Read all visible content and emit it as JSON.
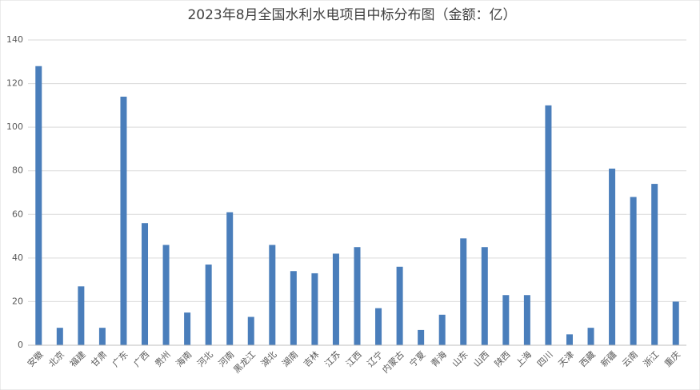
{
  "chart_data": {
    "type": "bar",
    "title": "2023年8月全国水利水电项目中标分布图（金额：亿）",
    "categories": [
      "安徽",
      "北京",
      "福建",
      "甘肃",
      "广东",
      "广西",
      "贵州",
      "海南",
      "河北",
      "河南",
      "黑龙江",
      "湖北",
      "湖南",
      "吉林",
      "江苏",
      "江西",
      "辽宁",
      "内蒙古",
      "宁夏",
      "青海",
      "山东",
      "山西",
      "陕西",
      "上海",
      "四川",
      "天津",
      "西藏",
      "新疆",
      "云南",
      "浙江",
      "重庆"
    ],
    "values": [
      128,
      8,
      27,
      8,
      114,
      56,
      46,
      15,
      37,
      61,
      13,
      46,
      34,
      33,
      42,
      45,
      17,
      36,
      7,
      14,
      49,
      45,
      23,
      23,
      110,
      5,
      8,
      81,
      68,
      74,
      20
    ],
    "color": "#4a7ebb",
    "ylim": [
      0,
      140
    ],
    "yticks": [
      0,
      20,
      40,
      60,
      80,
      100,
      120,
      140
    ],
    "grid": true
  }
}
